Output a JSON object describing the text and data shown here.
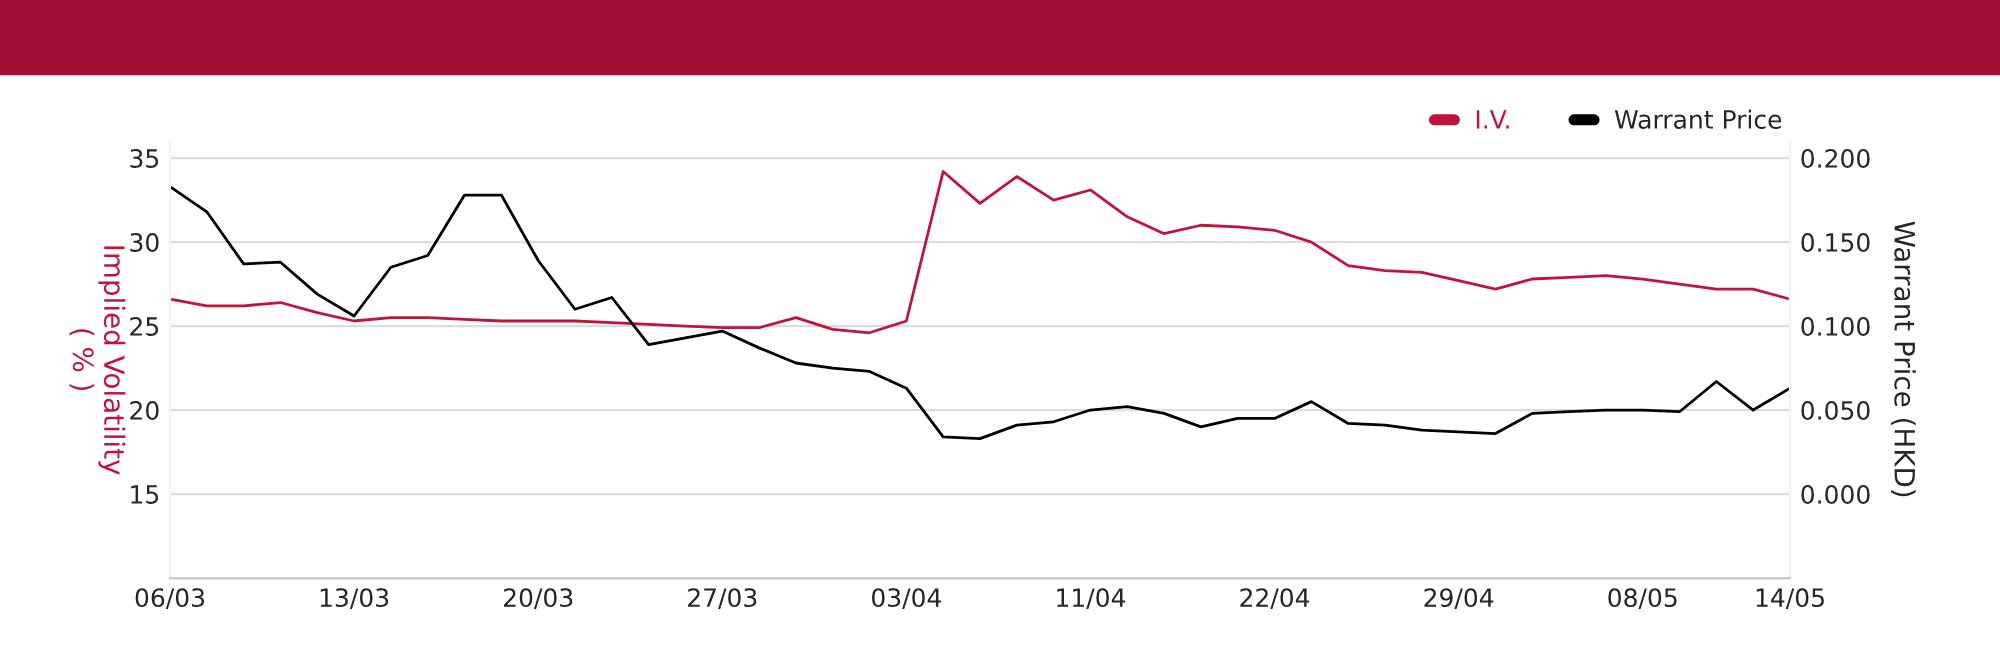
{
  "chart_data": {
    "type": "line",
    "categories": [
      "06/03",
      null,
      null,
      null,
      null,
      "13/03",
      null,
      null,
      null,
      null,
      "20/03",
      null,
      null,
      null,
      null,
      "27/03",
      null,
      null,
      null,
      null,
      "03/04",
      null,
      null,
      null,
      null,
      "11/04",
      null,
      null,
      null,
      null,
      "22/04",
      null,
      null,
      null,
      null,
      "29/04",
      null,
      null,
      null,
      null,
      "08/05",
      null,
      null,
      null,
      "14/05"
    ],
    "series": [
      {
        "name": "I.V.",
        "color": "#c0143c",
        "values": [
          26.6,
          26.2,
          26.2,
          26.4,
          25.8,
          25.3,
          25.5,
          25.5,
          25.4,
          25.3,
          25.3,
          25.3,
          25.2,
          25.1,
          25.0,
          24.9,
          24.9,
          25.5,
          24.8,
          24.6,
          25.3,
          34.2,
          32.3,
          33.9,
          32.5,
          33.1,
          31.5,
          30.5,
          31.0,
          30.9,
          30.7,
          30.0,
          28.6,
          28.3,
          28.2,
          27.7,
          27.2,
          27.8,
          27.9,
          28.0,
          27.8,
          27.5,
          27.2,
          27.2,
          26.6
        ]
      },
      {
        "name": "Warrant Price",
        "color": "#000000",
        "axis": "y2",
        "values": [
          0.183,
          0.168,
          0.137,
          0.138,
          0.119,
          0.106,
          0.135,
          0.142,
          0.178,
          0.178,
          0.139,
          0.11,
          0.117,
          0.089,
          0.093,
          0.097,
          0.087,
          0.078,
          0.075,
          0.073,
          0.063,
          0.034,
          0.033,
          0.041,
          0.043,
          0.05,
          0.052,
          0.048,
          0.04,
          0.045,
          0.045,
          0.055,
          0.042,
          0.041,
          0.038,
          0.037,
          0.036,
          0.048,
          0.049,
          0.05,
          0.05,
          0.049,
          0.067,
          0.05,
          0.063
        ]
      }
    ],
    "ylabel": "Implied Volatility\n( % )",
    "y2label": "Warrant Price (HKD)",
    "ylim": [
      10,
      36
    ],
    "yticks": [
      15,
      20,
      25,
      30,
      35
    ],
    "y2lim": [
      -0.05,
      0.21
    ],
    "y2ticks": [
      {
        "value": 0,
        "label": "0.000"
      },
      {
        "value": 0.05,
        "label": "0.050"
      },
      {
        "value": 0.1,
        "label": "0.100"
      },
      {
        "value": 0.15,
        "label": "0.150"
      },
      {
        "value": 0.2,
        "label": "0.200"
      }
    ],
    "grid": "y",
    "legend": "top right",
    "marker": "none",
    "line_style": "solid"
  }
}
